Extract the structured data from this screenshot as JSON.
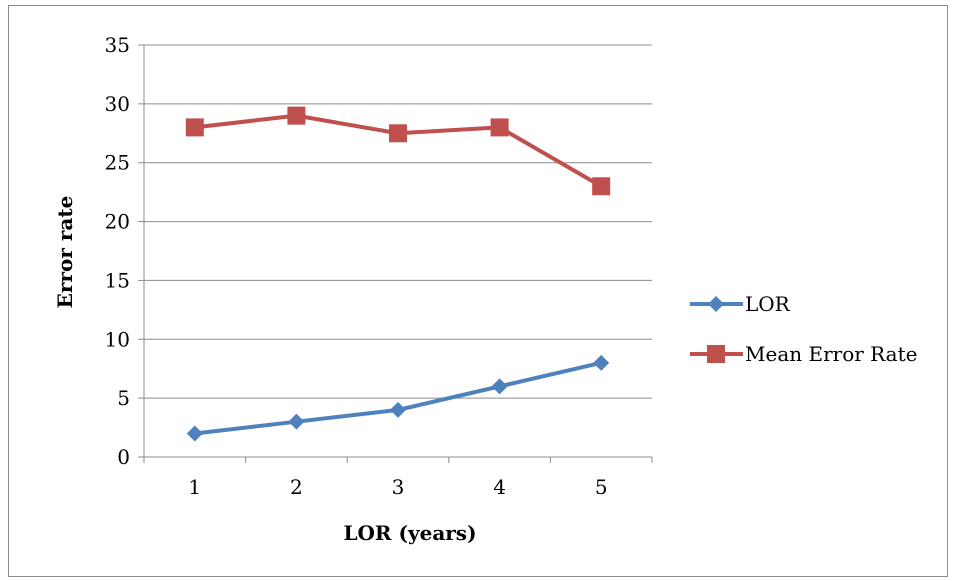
{
  "chart_data": {
    "type": "line",
    "categories": [
      "1",
      "2",
      "3",
      "4",
      "5"
    ],
    "series": [
      {
        "name": "LOR",
        "values": [
          2,
          3,
          4,
          6,
          8
        ],
        "color": "#4f81bd",
        "marker": "diamond"
      },
      {
        "name": "Mean Error Rate",
        "values": [
          28,
          29,
          27.5,
          28,
          23
        ],
        "color": "#c0504d",
        "marker": "square"
      }
    ],
    "xlabel": "LOR (years)",
    "ylabel": "Error  rate",
    "ylim": [
      0,
      35
    ],
    "yticks": [
      "0",
      "5",
      "10",
      "15",
      "20",
      "25",
      "30",
      "35"
    ],
    "grid": "horizontal",
    "legend_position": "right"
  }
}
